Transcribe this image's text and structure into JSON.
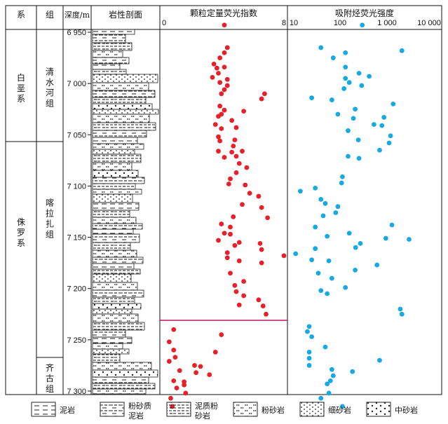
{
  "header": {
    "system": "系",
    "formation": "组",
    "depth": "深度/m",
    "lithology": "岩性剖面",
    "gfi": "颗粒定量荧光指数",
    "tsf": "吸附烃荧光强度"
  },
  "strata": {
    "systems": [
      "白垩系",
      "侏罗系"
    ],
    "formations": [
      "清水河组",
      "喀拉扎组",
      "齐古组"
    ]
  },
  "depth_ticks": [
    "6 950",
    "7 000",
    "7 050",
    "7 100",
    "7 150",
    "7 200",
    "7 250",
    "7 300"
  ],
  "gfi_ticks": [
    "0",
    "8"
  ],
  "tsf_ticks": [
    "10",
    "100",
    "1 000",
    "10 000"
  ],
  "legend": [
    {
      "pattern": "mudstone",
      "label": "泥岩"
    },
    {
      "pattern": "silty-mudstone",
      "label": "粉砂质泥岩"
    },
    {
      "pattern": "muddy-siltstone",
      "label": "泥质粉砂岩"
    },
    {
      "pattern": "siltstone",
      "label": "粉砂岩"
    },
    {
      "pattern": "fine-sandstone",
      "label": "细砂岩"
    },
    {
      "pattern": "medium-sandstone",
      "label": "中砂岩"
    }
  ],
  "colors": {
    "gfi": "#e8202a",
    "tsf": "#17a9e1",
    "boundary": "#b5005a"
  },
  "chart_data": [
    {
      "type": "scatter",
      "title": "颗粒定量荧光指数",
      "xlim": [
        0,
        8
      ],
      "ylim": [
        6940,
        7315
      ],
      "boundary_depth": 7231,
      "points": [
        [
          4.0,
          6943
        ],
        [
          4.2,
          6965
        ],
        [
          4.0,
          6970
        ],
        [
          3.7,
          6975
        ],
        [
          3.3,
          6981
        ],
        [
          3.5,
          6985
        ],
        [
          4.0,
          6984
        ],
        [
          3.6,
          6990
        ],
        [
          3.2,
          6994
        ],
        [
          4.2,
          6996
        ],
        [
          3.7,
          6999
        ],
        [
          4.2,
          7002
        ],
        [
          4.0,
          7006
        ],
        [
          3.8,
          7010
        ],
        [
          6.7,
          7010
        ],
        [
          6.5,
          7015
        ],
        [
          3.7,
          7022
        ],
        [
          4.0,
          7026
        ],
        [
          5.3,
          7027
        ],
        [
          3.8,
          7030
        ],
        [
          3.6,
          7032
        ],
        [
          4.5,
          7036
        ],
        [
          3.4,
          7040
        ],
        [
          3.8,
          7044
        ],
        [
          4.8,
          7043
        ],
        [
          3.6,
          7052
        ],
        [
          3.7,
          7056
        ],
        [
          4.7,
          7055
        ],
        [
          4.6,
          7061
        ],
        [
          3.6,
          7066
        ],
        [
          4.5,
          7067
        ],
        [
          5.2,
          7066
        ],
        [
          4.8,
          7071
        ],
        [
          4.0,
          7072
        ],
        [
          5.0,
          7078
        ],
        [
          5.5,
          7082
        ],
        [
          4.8,
          7087
        ],
        [
          4.4,
          7093
        ],
        [
          4.3,
          7098
        ],
        [
          5.4,
          7099
        ],
        [
          5.7,
          7107
        ],
        [
          6.3,
          7110
        ],
        [
          5.2,
          7118
        ],
        [
          6.5,
          7121
        ],
        [
          4.6,
          7130
        ],
        [
          6.9,
          7131
        ],
        [
          3.8,
          7137
        ],
        [
          4.4,
          7140
        ],
        [
          4.0,
          7146
        ],
        [
          4.4,
          7147
        ],
        [
          3.6,
          7153
        ],
        [
          5.0,
          7155
        ],
        [
          4.7,
          7158
        ],
        [
          6.4,
          7156
        ],
        [
          6.5,
          7162
        ],
        [
          4.2,
          7165
        ],
        [
          4.2,
          7170
        ],
        [
          8.0,
          7168
        ],
        [
          5.0,
          7173
        ],
        [
          6.5,
          7175
        ],
        [
          4.4,
          7185
        ],
        [
          5.3,
          7193
        ],
        [
          4.7,
          7197
        ],
        [
          4.8,
          7203
        ],
        [
          5.3,
          7207
        ],
        [
          6.3,
          7211
        ],
        [
          5.0,
          7216
        ],
        [
          6.6,
          7217
        ],
        [
          6.8,
          7225
        ],
        [
          0.6,
          7240
        ],
        [
          3.8,
          7245
        ],
        [
          0.3,
          7252
        ],
        [
          0.6,
          7260
        ],
        [
          3.4,
          7262
        ],
        [
          0.7,
          7267
        ],
        [
          0.3,
          7271
        ],
        [
          2.0,
          7275
        ],
        [
          2.4,
          7276
        ],
        [
          1.0,
          7280
        ],
        [
          2.1,
          7282
        ],
        [
          3.0,
          7284
        ],
        [
          0.6,
          7290
        ],
        [
          1.3,
          7291
        ],
        [
          0.8,
          7297
        ],
        [
          1.4,
          7302
        ],
        [
          0.4,
          7307
        ],
        [
          1.3,
          7294
        ],
        [
          0.5,
          7315
        ]
      ]
    },
    {
      "type": "scatter",
      "title": "吸附烃荧光强度",
      "xscale": "log",
      "xlim": [
        10,
        10000
      ],
      "ylim": [
        6940,
        7315
      ],
      "points": [
        [
          330,
          6943
        ],
        [
          40,
          6965
        ],
        [
          2500,
          6968
        ],
        [
          140,
          6970
        ],
        [
          75,
          6975
        ],
        [
          140,
          6984
        ],
        [
          280,
          6990
        ],
        [
          140,
          6995
        ],
        [
          470,
          6993
        ],
        [
          170,
          6999
        ],
        [
          320,
          7002
        ],
        [
          130,
          7005
        ],
        [
          25,
          7014
        ],
        [
          70,
          7016
        ],
        [
          1600,
          7020
        ],
        [
          230,
          7025
        ],
        [
          95,
          7030
        ],
        [
          1000,
          7033
        ],
        [
          210,
          7034
        ],
        [
          600,
          7040
        ],
        [
          900,
          7041
        ],
        [
          160,
          7046
        ],
        [
          1400,
          7051
        ],
        [
          270,
          7055
        ],
        [
          1300,
          7058
        ],
        [
          800,
          7065
        ],
        [
          160,
          7071
        ],
        [
          280,
          7073
        ],
        [
          120,
          7091
        ],
        [
          115,
          7097
        ],
        [
          30,
          7102
        ],
        [
          14,
          7105
        ],
        [
          40,
          7113
        ],
        [
          50,
          7117
        ],
        [
          95,
          7120
        ],
        [
          85,
          7126
        ],
        [
          45,
          7129
        ],
        [
          1500,
          7138
        ],
        [
          30,
          7140
        ],
        [
          170,
          7146
        ],
        [
          55,
          7149
        ],
        [
          1100,
          7151
        ],
        [
          3600,
          7152
        ],
        [
          300,
          7156
        ],
        [
          30,
          7161
        ],
        [
          235,
          7160
        ],
        [
          11,
          7166
        ],
        [
          25,
          7172
        ],
        [
          60,
          7173
        ],
        [
          700,
          7177
        ],
        [
          230,
          7182
        ],
        [
          35,
          7185
        ],
        [
          70,
          7190
        ],
        [
          140,
          7199
        ],
        [
          40,
          7202
        ],
        [
          55,
          7205
        ],
        [
          2300,
          7220
        ],
        [
          2500,
          7225
        ],
        [
          22,
          7237
        ],
        [
          20,
          7242
        ],
        [
          25,
          7247
        ],
        [
          50,
          7257
        ],
        [
          22,
          7262
        ],
        [
          22,
          7268
        ],
        [
          800,
          7270
        ],
        [
          22,
          7275
        ],
        [
          70,
          7279
        ],
        [
          200,
          7281
        ],
        [
          75,
          7285
        ],
        [
          65,
          7290
        ],
        [
          55,
          7293
        ],
        [
          60,
          7302
        ],
        [
          40,
          7307
        ],
        [
          120,
          7315
        ]
      ]
    }
  ]
}
